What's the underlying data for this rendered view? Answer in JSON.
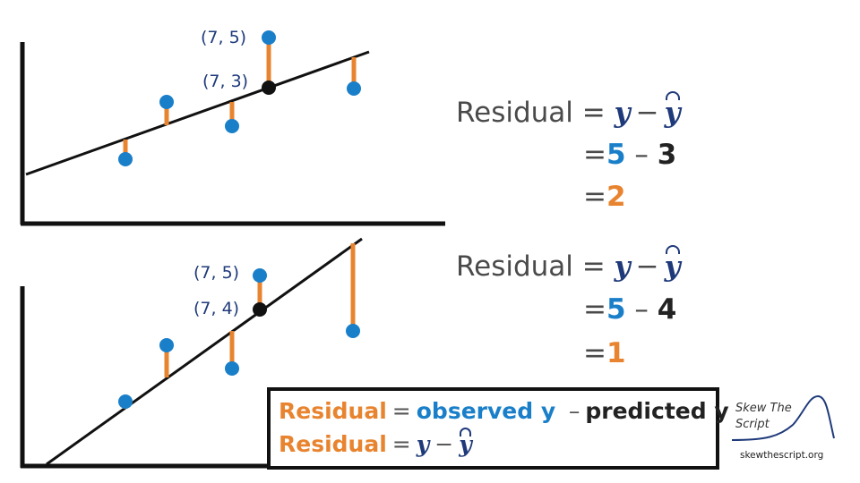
{
  "top_panel": {
    "point_observed_label": "(7, 5)",
    "point_predicted_label": "(7, 3)",
    "equation": {
      "lhs": "Residual",
      "eq1": "=",
      "y": "y",
      "minus": "−",
      "y_hat": "y",
      "eq2": "=",
      "observed_value": "5",
      "dash": "–",
      "predicted_value": "3",
      "eq3": "=",
      "result": "2"
    },
    "data": {
      "observed": [
        [
          80,
          390
        ],
        [
          105,
          415
        ],
        [
          147,
          400
        ],
        [
          223,
          425
        ]
      ],
      "line": [
        [
          -10,
          30.4
        ],
        [
          240,
          70.4
        ]
      ],
      "point_observed": [
        170,
        433
      ],
      "point_predicted": [
        170,
        378
      ]
    }
  },
  "bottom_panel": {
    "point_observed_label": "(7, 5)",
    "point_predicted_label": "(7, 4)",
    "equation": {
      "lhs": "Residual",
      "eq1": "=",
      "y": "y",
      "minus": "−",
      "y_hat": "y",
      "eq2": "=",
      "observed_value": "5",
      "dash": "–",
      "predicted_value": "4",
      "eq3": "=",
      "result": "1"
    }
  },
  "formula_box": {
    "line1": {
      "lhs": "Residual",
      "eq": "=",
      "observed": "observed y",
      "dash": "–",
      "predicted": "predicted y"
    },
    "line2": {
      "lhs": "Residual",
      "eq": "=",
      "y": "y",
      "minus": "−",
      "y_hat": "y"
    }
  },
  "logo": {
    "name": "Skew The Script",
    "website": "skewthescript.org"
  },
  "colors": {
    "observed_point": "#1a7fc9",
    "predicted_point": "#111111",
    "residual": "#e8842f",
    "line": "#111111",
    "axes": "#111111",
    "residual_text": "#e8842f",
    "observed_text": "#1a7fc9"
  }
}
